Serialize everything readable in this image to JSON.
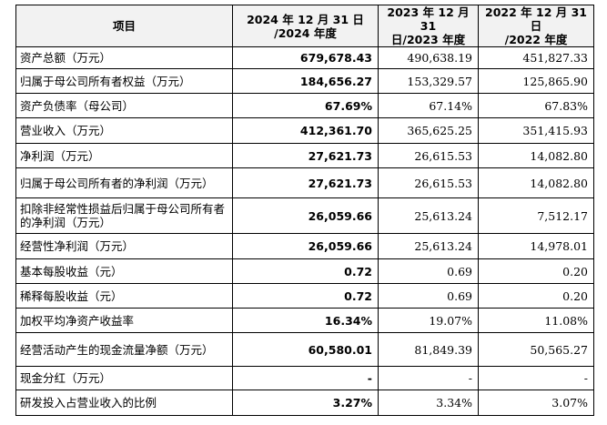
{
  "table": {
    "header": [
      [
        "项目"
      ],
      [
        "2024 年 12 月 31 日",
        "/2024 年度"
      ],
      [
        "2023 年 12 月 31",
        "日/2023 年度"
      ],
      [
        "2022 年 12 月 31 日",
        "/2022 年度"
      ]
    ],
    "rows": [
      [
        "资产总额（万元）",
        "679,678.43",
        "490,638.19",
        "451,827.33"
      ],
      [
        "归属于母公司所有者权益（万元）",
        "184,656.27",
        "153,329.57",
        "125,865.90"
      ],
      [
        "资产负债率（母公司）",
        "67.69%",
        "67.14%",
        "67.83%"
      ],
      [
        "营业收入（万元）",
        "412,361.70",
        "365,625.25",
        "351,415.93"
      ],
      [
        "净利润（万元）",
        "27,621.73",
        "26,615.53",
        "14,082.80"
      ],
      [
        "归属于母公司所有者的净利润（万元）",
        "27,621.73",
        "26,615.53",
        "14,082.80"
      ],
      [
        "扣除非经常性损益后归属于母公司所有者的净利润（万元）",
        "26,059.66",
        "25,613.24",
        "7,512.17"
      ],
      [
        "经营性净利润（万元）",
        "26,059.66",
        "25,613.24",
        "14,978.01"
      ],
      [
        "基本每股收益（元）",
        "0.72",
        "0.69",
        "0.20"
      ],
      [
        "稀释每股收益（元）",
        "0.72",
        "0.69",
        "0.20"
      ],
      [
        "加权平均净资产收益率",
        "16.34%",
        "19.07%",
        "11.08%"
      ],
      [
        "经营活动产生的现金流量净额（万元）",
        "60,580.01",
        "81,849.39",
        "50,565.27"
      ],
      [
        "现金分红（万元）",
        "-",
        "-",
        "-"
      ],
      [
        "研发投入占营业收入的比例",
        "3.27%",
        "3.34%",
        "3.07%"
      ]
    ]
  }
}
